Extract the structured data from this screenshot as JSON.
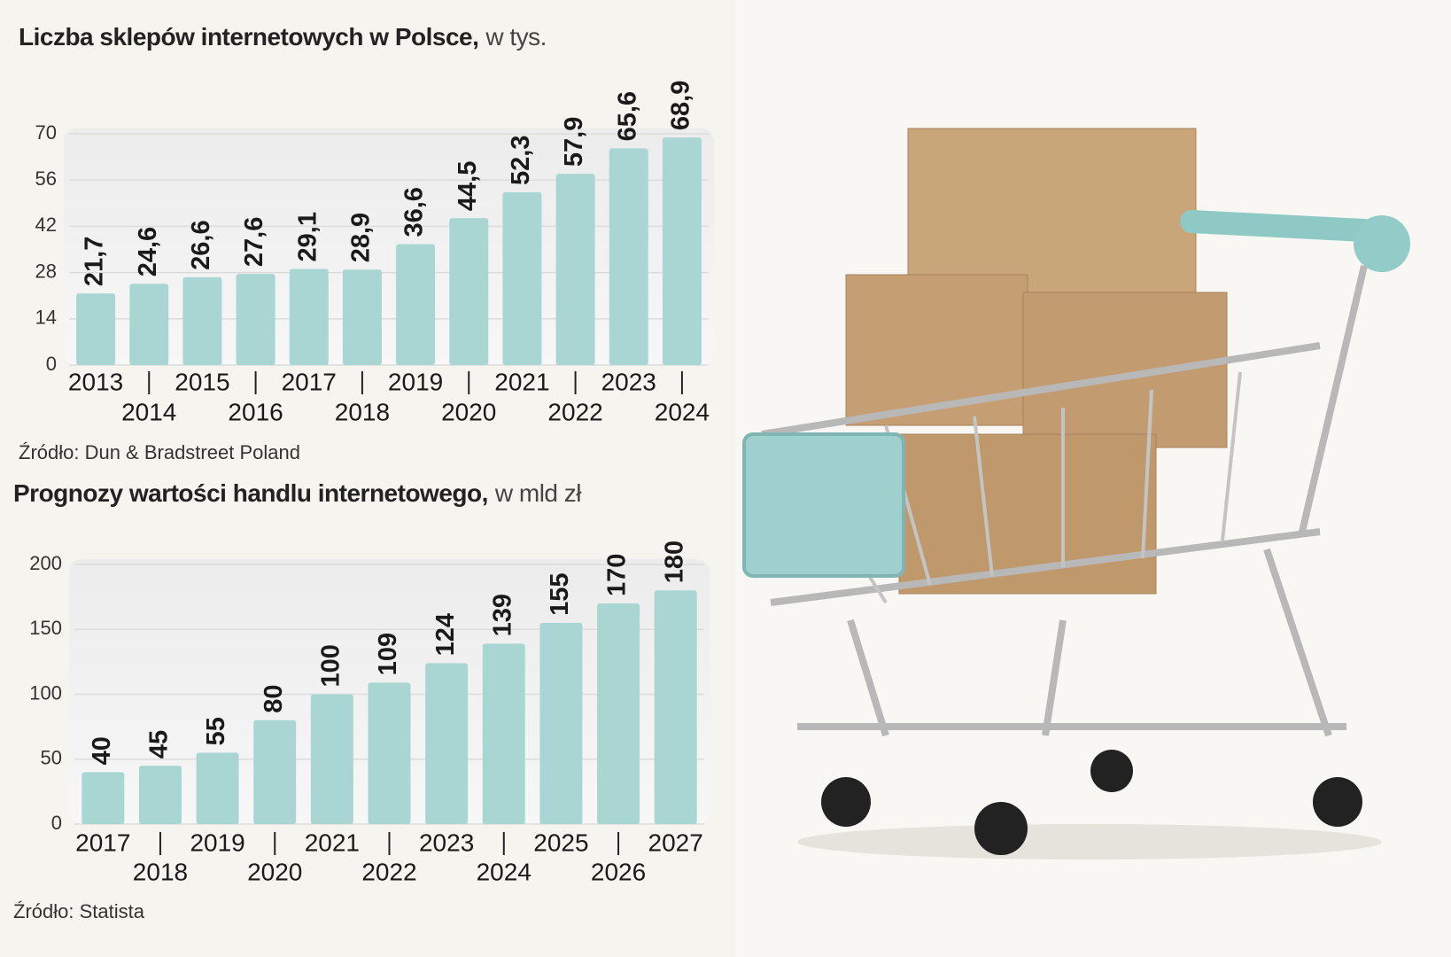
{
  "chart_data": [
    {
      "type": "bar",
      "title": "Liczba sklepów internetowych w Polsce,",
      "unit": "w tys.",
      "source": "Źródło: Dun & Bradstreet Poland",
      "categories": [
        "2013",
        "2014",
        "2015",
        "2016",
        "2017",
        "2018",
        "2019",
        "2020",
        "2021",
        "2022",
        "2023",
        "2024"
      ],
      "values": [
        21.7,
        24.6,
        26.6,
        27.6,
        29.1,
        28.9,
        36.6,
        44.5,
        52.3,
        57.9,
        65.6,
        68.9
      ],
      "value_labels": [
        "21,7",
        "24,6",
        "26,6",
        "27,6",
        "29,1",
        "28,9",
        "36,6",
        "44,5",
        "52,3",
        "57,9",
        "65,6",
        "68,9"
      ],
      "color": "#a9d6d3",
      "ylim": [
        0,
        70
      ],
      "yticks": [
        0,
        14,
        28,
        42,
        56,
        70
      ],
      "grid": true
    },
    {
      "type": "bar",
      "title": "Prognozy wartości handlu internetowego,",
      "unit": "w mld zł",
      "source": "Źródło: Statista",
      "categories": [
        "2017",
        "2018",
        "2019",
        "2020",
        "2021",
        "2022",
        "2023",
        "2024",
        "2025",
        "2026",
        "2027"
      ],
      "values": [
        40,
        45,
        55,
        80,
        100,
        109,
        124,
        139,
        155,
        170,
        180
      ],
      "color": "#a9d6d3",
      "ylim": [
        0,
        200
      ],
      "yticks": [
        0,
        50,
        100,
        150,
        200
      ],
      "grid": true
    }
  ]
}
